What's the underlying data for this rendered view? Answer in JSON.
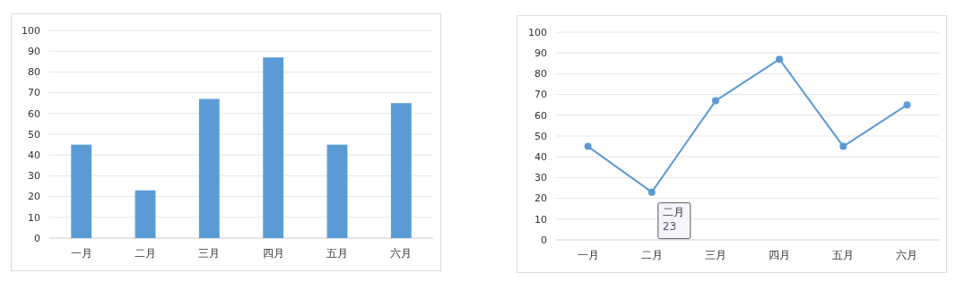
{
  "chart_data": [
    {
      "type": "bar",
      "categories": [
        "一月",
        "二月",
        "三月",
        "四月",
        "五月",
        "六月"
      ],
      "values": [
        45,
        23,
        67,
        87,
        45,
        65
      ],
      "color": "#5b9bd5",
      "ylim": [
        0,
        100
      ],
      "yticks": [
        0,
        10,
        20,
        30,
        40,
        50,
        60,
        70,
        80,
        90,
        100
      ],
      "grid": "y"
    },
    {
      "type": "line",
      "categories": [
        "一月",
        "二月",
        "三月",
        "四月",
        "五月",
        "六月"
      ],
      "values": [
        45,
        23,
        67,
        87,
        45,
        65
      ],
      "color": "#5b9bd5",
      "ylim": [
        0,
        100
      ],
      "yticks": [
        0,
        10,
        20,
        30,
        40,
        50,
        60,
        70,
        80,
        90,
        100
      ],
      "grid": "y",
      "marker": "circle",
      "line_style": "solid",
      "annotations": [
        {
          "text": "二月\n23",
          "x": "二月",
          "y": 23
        }
      ]
    }
  ]
}
